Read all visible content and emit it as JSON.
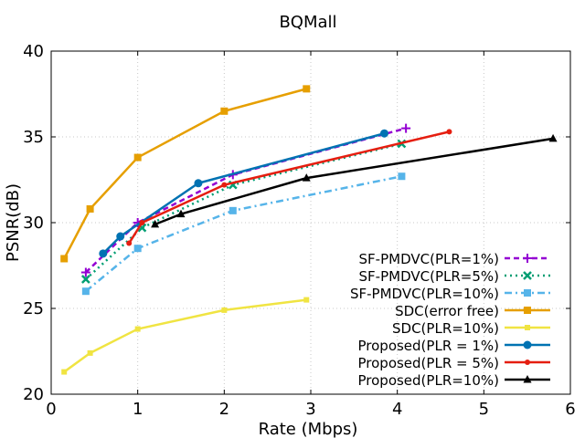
{
  "chart_data": {
    "type": "line",
    "title": "BQMall",
    "xlabel": "Rate (Mbps)",
    "ylabel": "PSNR(dB)",
    "xlim": [
      0,
      6
    ],
    "ylim": [
      20,
      40
    ],
    "xticks": [
      "0",
      "1",
      "2",
      "3",
      "4",
      "5",
      "6"
    ],
    "yticks": [
      "20",
      "25",
      "30",
      "35",
      "40"
    ],
    "grid": true,
    "legend_position": "bottom-right",
    "series": [
      {
        "name": "SF-PMDVC(PLR=1%)",
        "color": "#9400d3",
        "dash": "dashed",
        "marker": "plus",
        "x": [
          0.4,
          1.0,
          2.1,
          4.1
        ],
        "y": [
          27.1,
          30.0,
          32.8,
          35.5
        ]
      },
      {
        "name": "SF-PMDVC(PLR=5%)",
        "color": "#009e73",
        "dash": "dotted",
        "marker": "cross",
        "x": [
          0.4,
          1.05,
          2.1,
          4.05
        ],
        "y": [
          26.7,
          29.7,
          32.2,
          34.6
        ]
      },
      {
        "name": "SF-PMDVC(PLR=10%)",
        "color": "#56b4e9",
        "dash": "dashdot",
        "marker": "square",
        "x": [
          0.4,
          1.0,
          2.1,
          4.05
        ],
        "y": [
          26.0,
          28.5,
          30.7,
          32.7
        ]
      },
      {
        "name": "SDC(error free)",
        "color": "#e69f00",
        "dash": "solid",
        "marker": "square",
        "x": [
          0.15,
          0.45,
          1.0,
          2.0,
          2.95
        ],
        "y": [
          27.9,
          30.8,
          33.8,
          36.5,
          37.8
        ]
      },
      {
        "name": "SDC(PLR=10%)",
        "color": "#f0e442",
        "dash": "solid",
        "marker": "small-square",
        "x": [
          0.15,
          0.45,
          1.0,
          2.0,
          2.95
        ],
        "y": [
          21.3,
          22.4,
          23.8,
          24.9,
          25.5
        ]
      },
      {
        "name": "Proposed(PLR = 1%)",
        "color": "#0072b2",
        "dash": "solid",
        "marker": "circle",
        "x": [
          0.6,
          0.8,
          1.7,
          3.85
        ],
        "y": [
          28.2,
          29.2,
          32.3,
          35.2
        ]
      },
      {
        "name": "Proposed(PLR = 5%)",
        "color": "#e51e10",
        "dash": "solid",
        "marker": "small-circle",
        "x": [
          0.9,
          1.05,
          2.0,
          4.6
        ],
        "y": [
          28.8,
          30.0,
          32.2,
          35.3
        ]
      },
      {
        "name": "Proposed(PLR=10%)",
        "color": "#000000",
        "dash": "solid",
        "marker": "triangle",
        "x": [
          1.2,
          1.5,
          2.95,
          5.8
        ],
        "y": [
          29.9,
          30.5,
          32.6,
          34.9
        ]
      }
    ]
  }
}
